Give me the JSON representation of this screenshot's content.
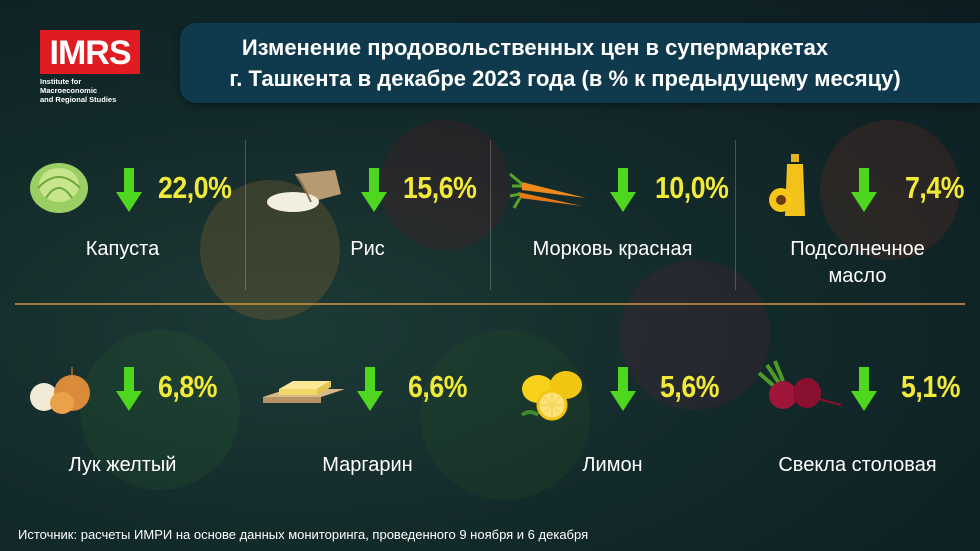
{
  "logo": {
    "brand": "IMRS",
    "subtitle_line1": "Institute for Macroeconomic",
    "subtitle_line2": "and Regional Studies"
  },
  "title": {
    "line1": "Изменение продовольственных цен в супермаркетах",
    "line2": "г. Ташкента в декабре 2023 года (в % к предыдущему месяцу)"
  },
  "colors": {
    "accent": "#f2ea39",
    "arrow": "#4fd61f",
    "logo_red": "#e11b22",
    "title_bg": "#0f3a4d"
  },
  "items": [
    {
      "name": "Капуста",
      "change": "22,0%",
      "icon": "cabbage-icon"
    },
    {
      "name": "Рис",
      "change": "15,6%",
      "icon": "rice-sack-icon"
    },
    {
      "name": "Морковь красная",
      "change": "10,0%",
      "icon": "carrot-icon"
    },
    {
      "name_line1": "Подсолнечное",
      "name_line2": "масло",
      "change": "7,4%",
      "icon": "sunflower-oil-icon"
    },
    {
      "name": "Лук желтый",
      "change": "6,8%",
      "icon": "onion-icon"
    },
    {
      "name": "Маргарин",
      "change": "6,6%",
      "icon": "margarine-icon"
    },
    {
      "name": "Лимон",
      "change": "5,6%",
      "icon": "lemon-icon"
    },
    {
      "name": "Свекла столовая",
      "change": "5,1%",
      "icon": "beet-icon"
    }
  ],
  "source": "Источник: расчеты ИМРИ на основе данных мониторинга, проведенного 9 ноября и 6 декабря"
}
